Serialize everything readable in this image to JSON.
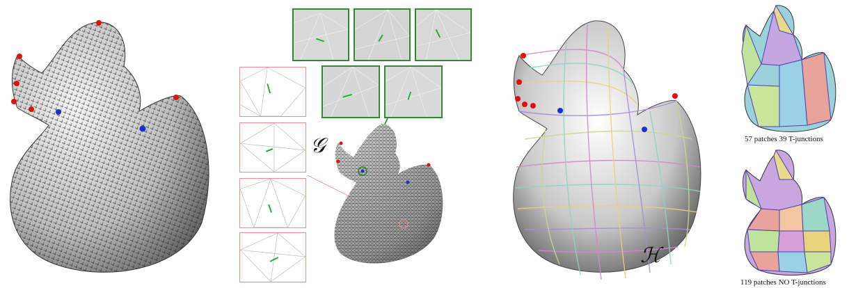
{
  "labels": {
    "graph_symbol": "𝒢",
    "hex_symbol": "ℋ",
    "caption_top": "57 patches 39 T-junctions",
    "caption_bottom": "119 patches NO T-junctions"
  },
  "colors": {
    "singular_red": "#e01010",
    "singular_blue": "#1a2fd0",
    "green_frame": "#2e8b2e",
    "pink_frame": "#f08a8a",
    "mesh_gray": "#9a9a9a"
  },
  "panels": {
    "left": "cross-field-duck",
    "center": "zoomed-insets",
    "right": "separatrix-duck",
    "far_right": "patch-layouts"
  }
}
